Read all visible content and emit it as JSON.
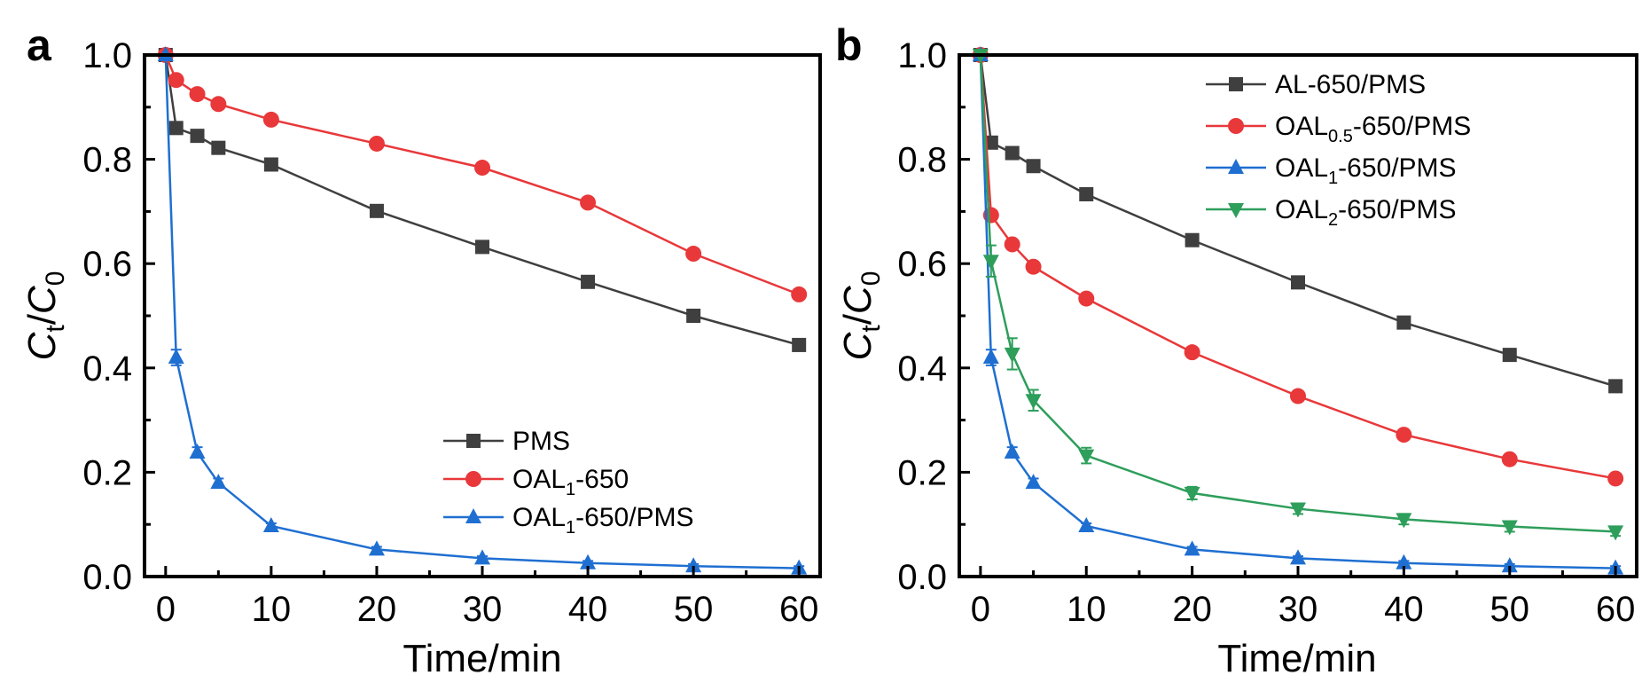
{
  "chart_data": [
    {
      "type": "line",
      "panel": "a",
      "xlabel": "Time/min",
      "ylabel": "C_t/C_0",
      "ylabel_parts": {
        "c1": "C",
        "s1": "t",
        "slash": "/",
        "c2": "C",
        "s2": "0"
      },
      "xlim": [
        -2,
        62
      ],
      "ylim": [
        0,
        1.0
      ],
      "xticks": [
        0,
        10,
        20,
        30,
        40,
        50,
        60
      ],
      "xtick_labels": [
        "0",
        "10",
        "20",
        "30",
        "40",
        "50",
        "60"
      ],
      "yticks": [
        0,
        0.2,
        0.4,
        0.6,
        0.8,
        1.0
      ],
      "ytick_labels": [
        "0.0",
        "0.2",
        "0.4",
        "0.6",
        "0.8",
        "1.0"
      ],
      "x": [
        0,
        1,
        3,
        5,
        10,
        20,
        30,
        40,
        50,
        60
      ],
      "legend_position": "bottom-right",
      "series": [
        {
          "name": "PMS",
          "legend": {
            "main": "PMS",
            "sub": "",
            "tail": ""
          },
          "color": "#3f3f3f",
          "marker": "square",
          "values": [
            1.0,
            0.86,
            0.845,
            0.822,
            0.79,
            0.701,
            0.632,
            0.565,
            0.5,
            0.444
          ],
          "errors": []
        },
        {
          "name": "OAL1-650",
          "legend": {
            "main": "OAL",
            "sub": "1",
            "tail": "-650"
          },
          "color": "#e8383a",
          "marker": "circle",
          "values": [
            1.0,
            0.952,
            0.925,
            0.906,
            0.876,
            0.83,
            0.784,
            0.717,
            0.619,
            0.541
          ],
          "errors": []
        },
        {
          "name": "OAL1-650/PMS",
          "legend": {
            "main": "OAL",
            "sub": "1",
            "tail": "-650/PMS"
          },
          "color": "#1f6fd1",
          "marker": "triangle-up",
          "values": [
            1.0,
            0.42,
            0.238,
            0.18,
            0.097,
            0.052,
            0.035,
            0.026,
            0.02,
            0.016
          ],
          "errors": [
            0,
            0.015,
            0.01,
            0.008,
            0.005,
            0.005,
            0.004,
            0.004,
            0.004,
            0.004
          ]
        }
      ]
    },
    {
      "type": "line",
      "panel": "b",
      "xlabel": "Time/min",
      "ylabel": "C_t/C_0",
      "ylabel_parts": {
        "c1": "C",
        "s1": "t",
        "slash": "/",
        "c2": "C",
        "s2": "0"
      },
      "xlim": [
        -2,
        62
      ],
      "ylim": [
        0,
        1.0
      ],
      "xticks": [
        0,
        10,
        20,
        30,
        40,
        50,
        60
      ],
      "xtick_labels": [
        "0",
        "10",
        "20",
        "30",
        "40",
        "50",
        "60"
      ],
      "yticks": [
        0,
        0.2,
        0.4,
        0.6,
        0.8,
        1.0
      ],
      "ytick_labels": [
        "0.0",
        "0.2",
        "0.4",
        "0.6",
        "0.8",
        "1.0"
      ],
      "x": [
        0,
        1,
        3,
        5,
        10,
        20,
        30,
        40,
        50,
        60
      ],
      "legend_position": "top-right",
      "series": [
        {
          "name": "AL-650/PMS",
          "legend": {
            "main": "AL-650/PMS",
            "sub": "",
            "tail": ""
          },
          "color": "#3f3f3f",
          "marker": "square",
          "values": [
            1.0,
            0.832,
            0.812,
            0.787,
            0.733,
            0.645,
            0.564,
            0.487,
            0.425,
            0.365
          ],
          "errors": []
        },
        {
          "name": "OAL0.5-650/PMS",
          "legend": {
            "main": "OAL",
            "sub": "0.5",
            "tail": "-650/PMS"
          },
          "color": "#e8383a",
          "marker": "circle",
          "values": [
            1.0,
            0.693,
            0.637,
            0.594,
            0.533,
            0.43,
            0.346,
            0.272,
            0.225,
            0.188
          ],
          "errors": []
        },
        {
          "name": "OAL1-650/PMS",
          "legend": {
            "main": "OAL",
            "sub": "1",
            "tail": "-650/PMS"
          },
          "color": "#1f6fd1",
          "marker": "triangle-up",
          "values": [
            1.0,
            0.42,
            0.238,
            0.18,
            0.097,
            0.052,
            0.035,
            0.026,
            0.02,
            0.016
          ],
          "errors": [
            0,
            0.015,
            0.01,
            0.008,
            0.005,
            0.005,
            0.004,
            0.004,
            0.004,
            0.004
          ]
        },
        {
          "name": "OAL2-650/PMS",
          "legend": {
            "main": "OAL",
            "sub": "2",
            "tail": "-650/PMS"
          },
          "color": "#2e9e5b",
          "marker": "triangle-down",
          "values": [
            1.0,
            0.605,
            0.427,
            0.338,
            0.232,
            0.16,
            0.13,
            0.11,
            0.096,
            0.086
          ],
          "errors": [
            0,
            0.03,
            0.03,
            0.02,
            0.015,
            0.012,
            0.01,
            0.01,
            0.01,
            0.008
          ]
        }
      ]
    }
  ]
}
